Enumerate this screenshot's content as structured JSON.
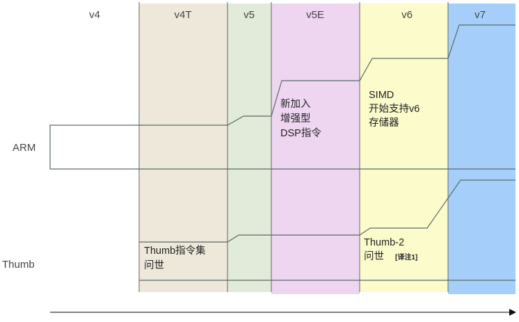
{
  "columns": [
    {
      "label": "v4",
      "color": "#ffffff"
    },
    {
      "label": "v4T",
      "color": "#ede8da"
    },
    {
      "label": "v5",
      "color": "#e2ead9"
    },
    {
      "label": "v5E",
      "color": "#eed6f1"
    },
    {
      "label": "v6",
      "color": "#fbfbcc"
    },
    {
      "label": "v7",
      "color": "#a5cffa"
    }
  ],
  "rows": {
    "arm": "ARM",
    "thumb": "Thumb"
  },
  "notes": {
    "dsp": [
      "新加入",
      "增强型",
      "DSP指令"
    ],
    "simd": [
      "SIMD",
      "开始支持v6",
      "存储器"
    ],
    "thumb": [
      "Thumb指令集",
      "问世"
    ],
    "thumb2": [
      "Thumb-2",
      "问世"
    ],
    "thumb2_footnote": "[译注1]"
  },
  "line_color": "#5a6a66"
}
